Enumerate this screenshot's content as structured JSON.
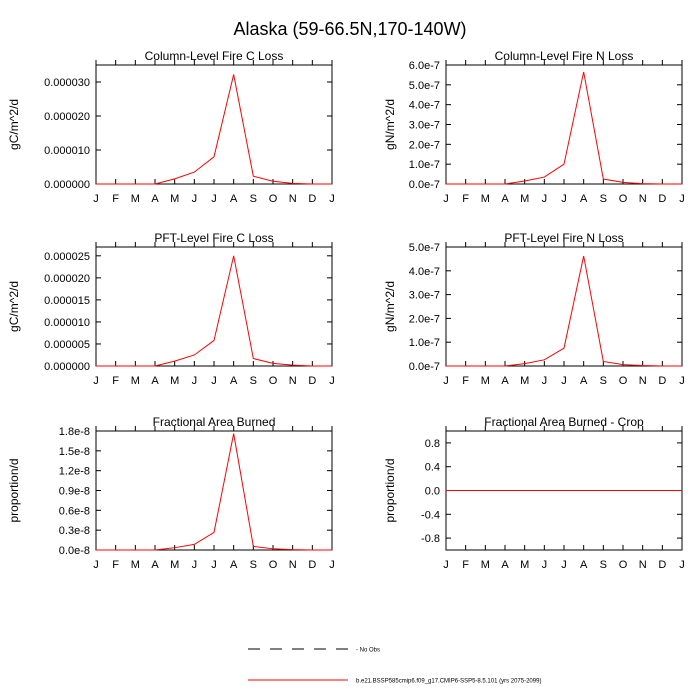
{
  "page_title": "Alaska (59-66.5N,170-140W)",
  "legend": {
    "obs_label": "- No Obs",
    "model_label": "b.e21.BSSP585cmip6.f09_g17.CMIP6-SSP5-8.5.101 (yrs 2075-2099)",
    "obs_color": "#000000",
    "model_color": "#ff0000"
  },
  "chart_data": [
    {
      "type": "line",
      "title": "Column-Level Fire C Loss",
      "ylabel": "gC/m^2/d",
      "categories": [
        "J",
        "F",
        "M",
        "A",
        "M",
        "J",
        "J",
        "A",
        "S",
        "O",
        "N",
        "D",
        "J"
      ],
      "ylim": [
        0,
        3.5e-05
      ],
      "yticks": [
        0,
        1e-05,
        2e-05,
        3e-05
      ],
      "yticklabels": [
        "0.000000",
        "0.000010",
        "0.000020",
        "0.000030"
      ],
      "series": [
        {
          "values": [
            0,
            0,
            0,
            0,
            1.5e-06,
            3.5e-06,
            8e-06,
            3.22e-05,
            2.3e-06,
            8e-07,
            2e-07,
            0,
            0
          ],
          "color": "#ff0000"
        }
      ]
    },
    {
      "type": "line",
      "title": "Column-Level Fire N Loss",
      "ylabel": "gN/m^2/d",
      "categories": [
        "J",
        "F",
        "M",
        "A",
        "M",
        "J",
        "J",
        "A",
        "S",
        "O",
        "N",
        "D",
        "J"
      ],
      "ylim": [
        0,
        6e-07
      ],
      "yticks": [
        0,
        1e-07,
        2e-07,
        3e-07,
        4e-07,
        5e-07,
        6e-07
      ],
      "yticklabels": [
        "0.0e-7",
        "1.0e-7",
        "2.0e-7",
        "3.0e-7",
        "4.0e-7",
        "5.0e-7",
        "6.0e-7"
      ],
      "series": [
        {
          "values": [
            0,
            0,
            0,
            0,
            1.5e-08,
            3.5e-08,
            1e-07,
            5.65e-07,
            2.5e-08,
            8e-09,
            2e-09,
            0,
            0
          ],
          "color": "#ff0000"
        }
      ]
    },
    {
      "type": "line",
      "title": "PFT-Level Fire C Loss",
      "ylabel": "gC/m^2/d",
      "categories": [
        "J",
        "F",
        "M",
        "A",
        "M",
        "J",
        "J",
        "A",
        "S",
        "O",
        "N",
        "D",
        "J"
      ],
      "ylim": [
        0,
        2.7e-05
      ],
      "yticks": [
        0,
        5e-06,
        1e-05,
        1.5e-05,
        2e-05,
        2.5e-05
      ],
      "yticklabels": [
        "0.000000",
        "0.000005",
        "0.000010",
        "0.000015",
        "0.000020",
        "0.000025"
      ],
      "series": [
        {
          "values": [
            0,
            0,
            0,
            0,
            1.1e-06,
            2.5e-06,
            5.8e-06,
            2.5e-05,
            1.7e-06,
            6e-07,
            2e-07,
            0,
            0
          ],
          "color": "#ff0000"
        }
      ]
    },
    {
      "type": "line",
      "title": "PFT-Level Fire N Loss",
      "ylabel": "gN/m^2/d",
      "categories": [
        "J",
        "F",
        "M",
        "A",
        "M",
        "J",
        "J",
        "A",
        "S",
        "O",
        "N",
        "D",
        "J"
      ],
      "ylim": [
        0,
        5e-07
      ],
      "yticks": [
        0,
        1e-07,
        2e-07,
        3e-07,
        4e-07,
        5e-07
      ],
      "yticklabels": [
        "0.0e-7",
        "1.0e-7",
        "2.0e-7",
        "3.0e-7",
        "4.0e-7",
        "5.0e-7"
      ],
      "series": [
        {
          "values": [
            0,
            0,
            0,
            0,
            1e-08,
            2.6e-08,
            7.5e-08,
            4.62e-07,
            1.9e-08,
            6e-09,
            2e-09,
            0,
            0
          ],
          "color": "#ff0000"
        }
      ]
    },
    {
      "type": "line",
      "title": "Fractional Area Burned",
      "ylabel": "proportion/d",
      "categories": [
        "J",
        "F",
        "M",
        "A",
        "M",
        "J",
        "J",
        "A",
        "S",
        "O",
        "N",
        "D",
        "J"
      ],
      "ylim": [
        0,
        1.8e-08
      ],
      "yticks": [
        0,
        3e-09,
        6e-09,
        9e-09,
        1.2e-08,
        1.5e-08,
        1.8e-08
      ],
      "yticklabels": [
        "0.0e-8",
        "0.3e-8",
        "0.6e-8",
        "0.9e-8",
        "1.2e-8",
        "1.5e-8",
        "1.8e-8"
      ],
      "series": [
        {
          "values": [
            0,
            0,
            0,
            0,
            3.5e-10,
            8.5e-10,
            2.65e-09,
            1.76e-08,
            5.5e-10,
            1.8e-10,
            5e-11,
            0,
            0
          ],
          "color": "#ff0000"
        }
      ]
    },
    {
      "type": "line",
      "title": "Fractional Area Burned - Crop",
      "ylabel": "proportion/d",
      "categories": [
        "J",
        "F",
        "M",
        "A",
        "M",
        "J",
        "J",
        "A",
        "S",
        "O",
        "N",
        "D",
        "J"
      ],
      "ylim": [
        -1.0,
        1.0
      ],
      "yticks": [
        -0.8,
        -0.4,
        0,
        0.4,
        0.8
      ],
      "yticklabels": [
        "-0.8",
        "-0.4",
        "0.0",
        "0.4",
        "0.8"
      ],
      "series": [
        {
          "values": [
            0,
            0,
            0,
            0,
            0,
            0,
            0,
            0,
            0,
            0,
            0,
            0,
            0
          ],
          "color": "#ff0000"
        }
      ]
    }
  ]
}
